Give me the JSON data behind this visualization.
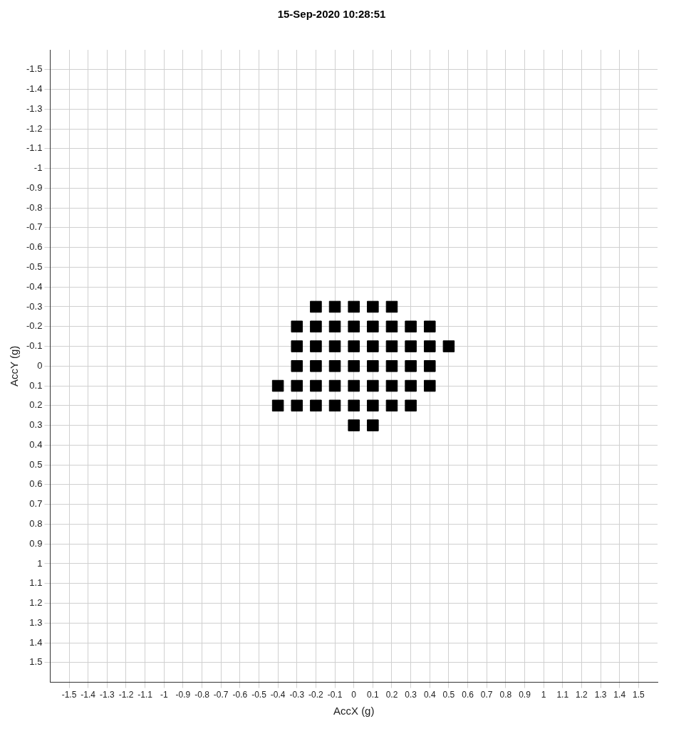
{
  "chart_data": {
    "type": "scatter",
    "title": "15-Sep-2020 10:28:51",
    "xlabel": "AccX (g)",
    "ylabel": "AccY (g)",
    "series": [
      {
        "color": "#000000",
        "x": [
          -0.2,
          -0.1,
          0,
          0.1,
          0.2,
          -0.3,
          -0.2,
          -0.1,
          0,
          0.1,
          0.2,
          0.3,
          0.4,
          -0.3,
          -0.2,
          -0.1,
          0,
          0.1,
          0.2,
          0.3,
          0.4,
          0.5,
          -0.3,
          -0.2,
          -0.1,
          0,
          0.1,
          0.2,
          0.3,
          0.4,
          -0.4,
          -0.3,
          -0.2,
          -0.1,
          0,
          0.1,
          0.2,
          0.3,
          0.4,
          -0.4,
          -0.3,
          -0.2,
          -0.1,
          0,
          0.1,
          0.2,
          0.3,
          0,
          0.1
        ],
        "values": [
          -0.3,
          -0.3,
          -0.3,
          -0.3,
          -0.3,
          -0.2,
          -0.2,
          -0.2,
          -0.2,
          -0.2,
          -0.2,
          -0.2,
          -0.2,
          -0.1,
          -0.1,
          -0.1,
          -0.1,
          -0.1,
          -0.1,
          -0.1,
          -0.1,
          -0.1,
          0,
          0,
          0,
          0,
          0,
          0,
          0,
          0,
          0.1,
          0.1,
          0.1,
          0.1,
          0.1,
          0.1,
          0.1,
          0.1,
          0.1,
          0.2,
          0.2,
          0.2,
          0.2,
          0.2,
          0.2,
          0.2,
          0.2,
          0.3,
          0.3
        ]
      }
    ],
    "xlim": [
      -1.6,
      1.6
    ],
    "ylim": [
      1.6,
      -1.6
    ],
    "xticks": [
      -1.5,
      -1.4,
      -1.3,
      -1.2,
      -1.1,
      -1,
      -0.9,
      -0.8,
      -0.7,
      -0.6,
      -0.5,
      -0.4,
      -0.3,
      -0.2,
      -0.1,
      0,
      0.1,
      0.2,
      0.3,
      0.4,
      0.5,
      0.6,
      0.7,
      0.8,
      0.9,
      1,
      1.1,
      1.2,
      1.3,
      1.4,
      1.5
    ],
    "yticks": [
      -1.5,
      -1.4,
      -1.3,
      -1.2,
      -1.1,
      -1,
      -0.9,
      -0.8,
      -0.7,
      -0.6,
      -0.5,
      -0.4,
      -0.3,
      -0.2,
      -0.1,
      0,
      0.1,
      0.2,
      0.3,
      0.4,
      0.5,
      0.6,
      0.7,
      0.8,
      0.9,
      1,
      1.1,
      1.2,
      1.3,
      1.4,
      1.5
    ],
    "grid": true,
    "marker": "square"
  }
}
